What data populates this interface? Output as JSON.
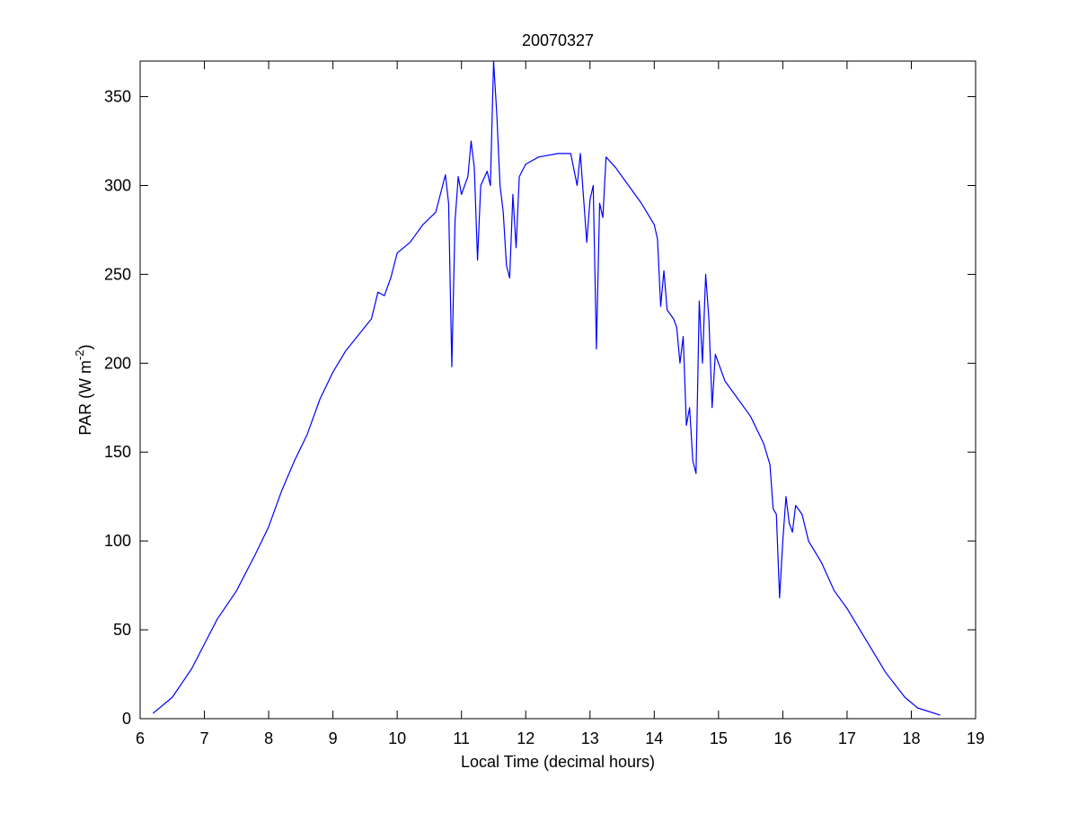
{
  "chart_data": {
    "type": "line",
    "title": "20070327",
    "xlabel": "Local Time (decimal hours)",
    "ylabel": [
      "PAR (W m",
      "-2",
      ")"
    ],
    "xlim": [
      6,
      19
    ],
    "xticks": [
      6,
      7,
      8,
      9,
      10,
      11,
      12,
      13,
      14,
      15,
      16,
      17,
      18,
      19
    ],
    "ylim": [
      0,
      370
    ],
    "yticks": [
      0,
      50,
      100,
      150,
      200,
      250,
      300,
      350
    ],
    "grid": false,
    "series": [
      {
        "color": "#0000ff",
        "x": [
          6.2,
          6.5,
          6.8,
          7.0,
          7.2,
          7.5,
          7.8,
          8.0,
          8.2,
          8.4,
          8.6,
          8.8,
          9.0,
          9.2,
          9.4,
          9.6,
          9.7,
          9.8,
          9.9,
          10.0,
          10.2,
          10.4,
          10.6,
          10.75,
          10.8,
          10.85,
          10.9,
          10.95,
          11.0,
          11.1,
          11.15,
          11.2,
          11.25,
          11.3,
          11.4,
          11.45,
          11.5,
          11.55,
          11.6,
          11.65,
          11.7,
          11.75,
          11.8,
          11.85,
          11.9,
          12.0,
          12.2,
          12.5,
          12.7,
          12.8,
          12.85,
          12.95,
          13.0,
          13.05,
          13.1,
          13.15,
          13.2,
          13.25,
          13.4,
          13.5,
          13.6,
          13.8,
          14.0,
          14.05,
          14.1,
          14.15,
          14.2,
          14.3,
          14.35,
          14.4,
          14.45,
          14.5,
          14.55,
          14.6,
          14.65,
          14.7,
          14.75,
          14.8,
          14.85,
          14.9,
          14.95,
          15.0,
          15.1,
          15.3,
          15.5,
          15.7,
          15.8,
          15.85,
          15.9,
          15.95,
          16.0,
          16.05,
          16.1,
          16.15,
          16.2,
          16.3,
          16.4,
          16.6,
          16.8,
          17.0,
          17.3,
          17.6,
          17.9,
          18.1,
          18.45
        ],
        "values": [
          3,
          12,
          28,
          42,
          56,
          72,
          93,
          108,
          128,
          145,
          160,
          180,
          195,
          207,
          216,
          225,
          240,
          238,
          248,
          262,
          268,
          278,
          285,
          306,
          290,
          198,
          280,
          305,
          295,
          305,
          325,
          310,
          258,
          300,
          308,
          300,
          370,
          340,
          300,
          285,
          255,
          248,
          295,
          265,
          305,
          312,
          316,
          318,
          318,
          300,
          318,
          268,
          292,
          300,
          208,
          290,
          282,
          316,
          310,
          305,
          300,
          290,
          278,
          270,
          232,
          252,
          230,
          225,
          220,
          200,
          215,
          165,
          175,
          145,
          138,
          235,
          200,
          250,
          225,
          175,
          205,
          200,
          190,
          180,
          170,
          155,
          143,
          118,
          115,
          68,
          100,
          125,
          110,
          105,
          120,
          115,
          100,
          88,
          72,
          62,
          44,
          26,
          12,
          6,
          2
        ]
      }
    ]
  }
}
